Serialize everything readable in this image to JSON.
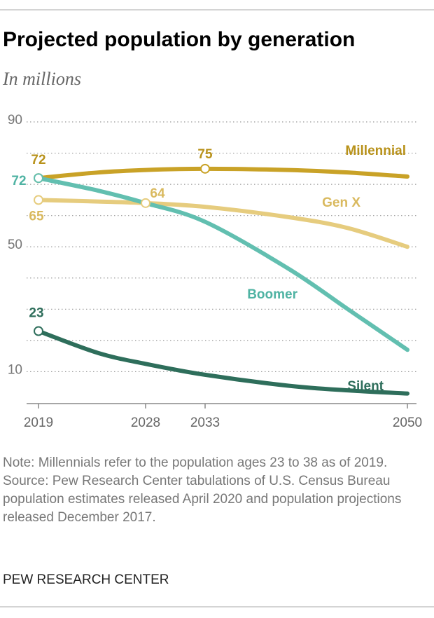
{
  "chart_data": {
    "type": "line",
    "title": "Projected population by generation",
    "subtitle": "In millions",
    "x": [
      2019,
      2024,
      2028,
      2033,
      2040,
      2045,
      2050
    ],
    "xlim": [
      2018,
      2051
    ],
    "xticks": [
      2019,
      2028,
      2033,
      2050
    ],
    "ylim": [
      0,
      90
    ],
    "yticks": [
      10,
      50,
      90
    ],
    "minor_yticks": [
      20,
      30,
      40,
      60,
      70,
      80
    ],
    "grid": true,
    "series": [
      {
        "name": "Millennial",
        "color": "#c9a227",
        "values": [
          72,
          73.8,
          74.6,
          75,
          74.6,
          73.8,
          72.5
        ],
        "marked_points": [
          0,
          3
        ]
      },
      {
        "name": "Gen X",
        "color": "#e6cc7e",
        "values": [
          65,
          64.5,
          64,
          62.8,
          59.5,
          56,
          50
        ],
        "marked_points": [
          0,
          2
        ]
      },
      {
        "name": "Boomer",
        "color": "#62bfb0",
        "values": [
          72,
          68,
          64,
          58,
          43,
          30,
          17
        ],
        "marked_points": [
          0
        ]
      },
      {
        "name": "Silent",
        "color": "#2e6e5b",
        "values": [
          23,
          16,
          12.5,
          9,
          5.5,
          4,
          3
        ],
        "marked_points": [
          0
        ]
      }
    ],
    "note": "Note: Millennials refer to the population ages 23 to 38 as of 2019.",
    "source": "Source: Pew Research Center tabulations of U.S. Census Bureau population estimates released April 2020 and population projections released December 2017.",
    "credit": "PEW RESEARCH CENTER"
  }
}
